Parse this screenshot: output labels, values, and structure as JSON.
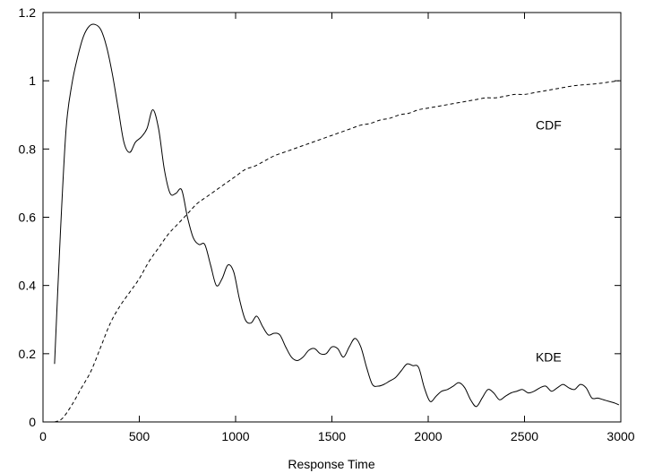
{
  "chart_data": {
    "type": "line",
    "title": "",
    "xlabel": "Response Time",
    "ylabel": "",
    "xlim": [
      0,
      3000
    ],
    "ylim": [
      0,
      1.2
    ],
    "x_ticks": [
      "0",
      "500",
      "1000",
      "1500",
      "2000",
      "2500",
      "3000"
    ],
    "y_ticks": [
      "0",
      "0.2",
      "0.4",
      "0.6",
      "0.8",
      "1",
      "1.2"
    ],
    "grid": false,
    "legend": "none",
    "series": [
      {
        "name": "KDE",
        "style": "solid",
        "color": "#000000",
        "x": [
          60,
          90,
          120,
          150,
          180,
          210,
          240,
          270,
          300,
          330,
          360,
          390,
          420,
          450,
          480,
          510,
          540,
          570,
          600,
          630,
          660,
          690,
          720,
          750,
          780,
          810,
          840,
          870,
          900,
          930,
          960,
          990,
          1020,
          1050,
          1080,
          1110,
          1140,
          1170,
          1200,
          1230,
          1260,
          1290,
          1320,
          1350,
          1380,
          1410,
          1440,
          1470,
          1500,
          1530,
          1560,
          1590,
          1620,
          1650,
          1680,
          1710,
          1740,
          1770,
          1800,
          1830,
          1860,
          1890,
          1920,
          1950,
          1980,
          2010,
          2040,
          2070,
          2100,
          2130,
          2160,
          2190,
          2220,
          2250,
          2280,
          2310,
          2340,
          2370,
          2400,
          2430,
          2460,
          2490,
          2520,
          2550,
          2580,
          2610,
          2640,
          2670,
          2700,
          2730,
          2760,
          2790,
          2820,
          2850,
          2880,
          2910,
          2940,
          2970,
          2990
        ],
        "y": [
          0.17,
          0.55,
          0.86,
          0.99,
          1.07,
          1.13,
          1.16,
          1.165,
          1.15,
          1.1,
          1.02,
          0.92,
          0.82,
          0.79,
          0.82,
          0.835,
          0.86,
          0.915,
          0.86,
          0.74,
          0.67,
          0.67,
          0.68,
          0.6,
          0.54,
          0.52,
          0.52,
          0.46,
          0.4,
          0.42,
          0.46,
          0.44,
          0.36,
          0.3,
          0.29,
          0.31,
          0.28,
          0.255,
          0.26,
          0.255,
          0.22,
          0.19,
          0.18,
          0.19,
          0.21,
          0.215,
          0.2,
          0.2,
          0.22,
          0.215,
          0.19,
          0.22,
          0.245,
          0.22,
          0.16,
          0.11,
          0.105,
          0.11,
          0.12,
          0.13,
          0.15,
          0.17,
          0.165,
          0.16,
          0.1,
          0.06,
          0.075,
          0.09,
          0.095,
          0.105,
          0.115,
          0.1,
          0.065,
          0.045,
          0.07,
          0.095,
          0.085,
          0.065,
          0.075,
          0.085,
          0.09,
          0.095,
          0.085,
          0.09,
          0.1,
          0.105,
          0.09,
          0.1,
          0.11,
          0.1,
          0.095,
          0.11,
          0.1,
          0.07,
          0.07,
          0.065,
          0.06,
          0.055,
          0.05
        ]
      },
      {
        "name": "CDF",
        "style": "dashed",
        "color": "#000000",
        "x": [
          60,
          100,
          150,
          200,
          250,
          300,
          350,
          400,
          450,
          500,
          550,
          600,
          650,
          700,
          750,
          800,
          850,
          900,
          950,
          1000,
          1050,
          1100,
          1150,
          1200,
          1250,
          1300,
          1350,
          1400,
          1450,
          1500,
          1550,
          1600,
          1650,
          1700,
          1750,
          1800,
          1850,
          1900,
          1950,
          2000,
          2050,
          2100,
          2150,
          2200,
          2250,
          2300,
          2350,
          2400,
          2450,
          2500,
          2550,
          2600,
          2650,
          2700,
          2750,
          2800,
          2850,
          2900,
          2950,
          2990
        ],
        "y": [
          0.0,
          0.01,
          0.05,
          0.1,
          0.15,
          0.22,
          0.29,
          0.34,
          0.38,
          0.42,
          0.47,
          0.51,
          0.55,
          0.58,
          0.61,
          0.64,
          0.66,
          0.68,
          0.7,
          0.72,
          0.74,
          0.75,
          0.765,
          0.78,
          0.79,
          0.8,
          0.81,
          0.82,
          0.83,
          0.84,
          0.85,
          0.86,
          0.87,
          0.875,
          0.885,
          0.89,
          0.9,
          0.905,
          0.915,
          0.92,
          0.925,
          0.93,
          0.935,
          0.94,
          0.945,
          0.95,
          0.95,
          0.955,
          0.96,
          0.96,
          0.965,
          0.97,
          0.975,
          0.98,
          0.985,
          0.988,
          0.99,
          0.993,
          0.997,
          1.0
        ]
      }
    ],
    "annotations": [
      {
        "text": "CDF",
        "x": 2625,
        "y": 0.87
      },
      {
        "text": "KDE",
        "x": 2625,
        "y": 0.19
      }
    ]
  }
}
